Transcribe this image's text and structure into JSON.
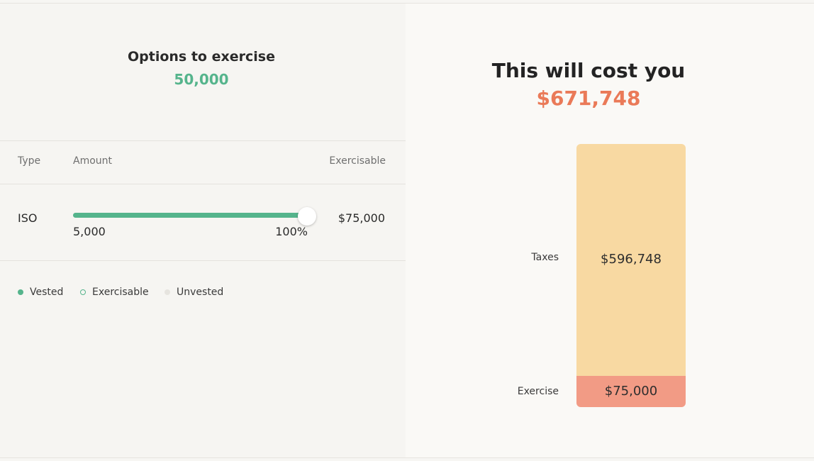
{
  "options": {
    "title": "Options to exercise",
    "value": "50,000"
  },
  "table": {
    "headers": {
      "type": "Type",
      "amount": "Amount",
      "exercisable": "Exercisable"
    },
    "row": {
      "type": "ISO",
      "slider_min_label": "5,000",
      "slider_percent_label": "100%",
      "slider_fraction": 1.0,
      "exercisable": "$75,000"
    }
  },
  "legend": {
    "vested": "Vested",
    "exercisable": "Exercisable",
    "unvested": "Unvested"
  },
  "cost": {
    "title": "This will cost you",
    "value": "$671,748"
  },
  "breakdown": [
    {
      "label": "Taxes",
      "value": "$596,748",
      "amount": 596748,
      "color": "#f8d9a2"
    },
    {
      "label": "Exercise",
      "value": "$75,000",
      "amount": 75000,
      "color": "#f29b85"
    }
  ],
  "colors": {
    "accent_green": "#55b48c",
    "accent_orange": "#ea7a58"
  }
}
